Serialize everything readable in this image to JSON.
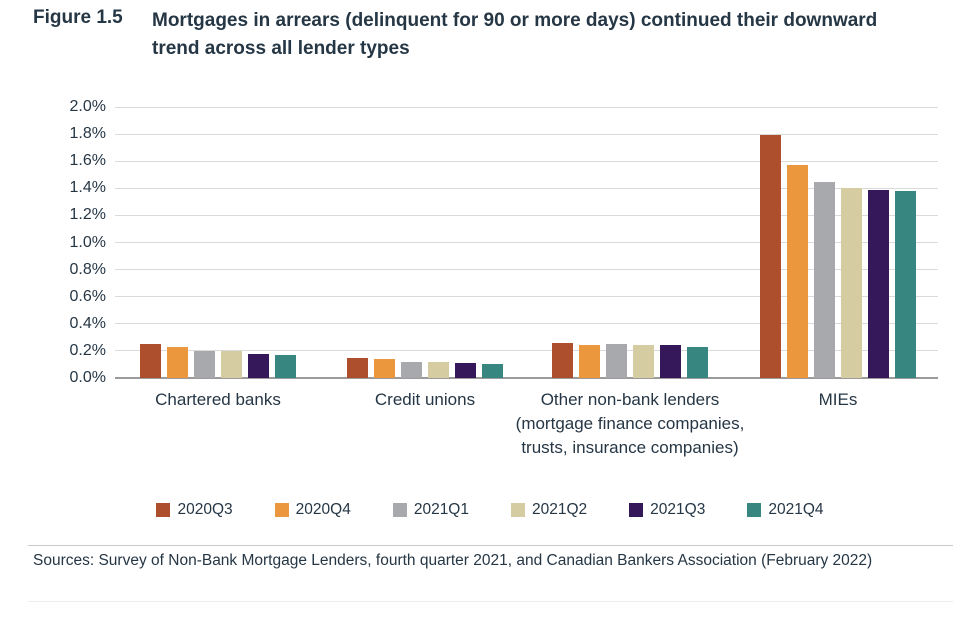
{
  "figure": {
    "label": "Figure 1.5",
    "title": "Mortgages in arrears (delinquent for 90 or more days) continued their downward trend across all lender types"
  },
  "source_note": "Sources: Survey of Non-Bank Mortgage Lenders, fourth quarter 2021, and Canadian Bankers Association (February 2022)",
  "chart_data": {
    "type": "bar",
    "title": "Mortgages in arrears (delinquent for 90 or more days) by lender type",
    "categories": [
      "Chartered banks",
      "Credit unions",
      "Other non-bank lenders\n(mortgage finance companies,\ntrusts, insurance companies)",
      "MIEs"
    ],
    "series": [
      {
        "name": "2020Q3",
        "color": "#ad4e2c",
        "values": [
          0.25,
          0.15,
          0.26,
          1.79
        ]
      },
      {
        "name": "2020Q4",
        "color": "#eb973d",
        "values": [
          0.23,
          0.14,
          0.24,
          1.57
        ]
      },
      {
        "name": "2021Q1",
        "color": "#a8a9ac",
        "values": [
          0.2,
          0.12,
          0.25,
          1.45
        ]
      },
      {
        "name": "2021Q2",
        "color": "#d5cda1",
        "values": [
          0.2,
          0.12,
          0.24,
          1.4
        ]
      },
      {
        "name": "2021Q3",
        "color": "#34185a",
        "values": [
          0.18,
          0.11,
          0.24,
          1.39
        ]
      },
      {
        "name": "2021Q4",
        "color": "#378680",
        "values": [
          0.17,
          0.1,
          0.23,
          1.38
        ]
      }
    ],
    "y_axis": {
      "min": 0.0,
      "max": 2.0,
      "step": 0.2,
      "tick_labels": [
        "0.0%",
        "0.2%",
        "0.4%",
        "0.6%",
        "0.8%",
        "1.0%",
        "1.2%",
        "1.4%",
        "1.6%",
        "1.8%",
        "2.0%"
      ]
    },
    "grid": true,
    "legend_position": "bottom"
  }
}
